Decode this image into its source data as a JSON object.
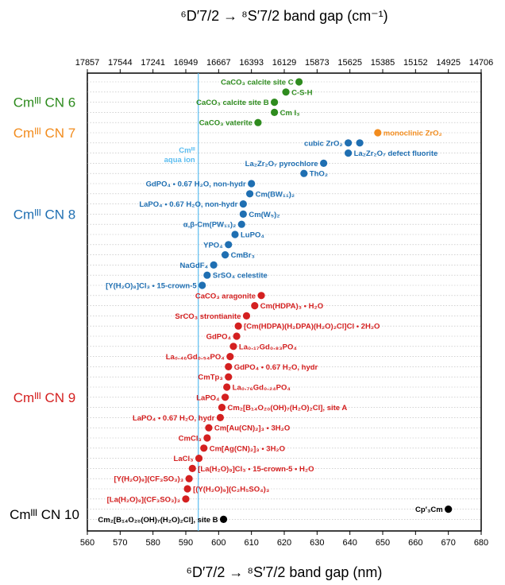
{
  "chart_data": {
    "type": "scatter",
    "xlabel": "⁶D′7/2 → ⁸S′7/2 band gap (nm)",
    "x2label": "⁶D′7/2 → ⁸S′7/2 band gap (cm⁻¹)",
    "xlim": [
      560,
      680
    ],
    "x_ticks": [
      "560",
      "570",
      "580",
      "590",
      "600",
      "610",
      "620",
      "630",
      "640",
      "650",
      "660",
      "670",
      "680"
    ],
    "x2_ticks": [
      "17857",
      "17544",
      "17241",
      "16949",
      "16667",
      "16393",
      "16129",
      "15873",
      "15625",
      "15385",
      "15152",
      "14925",
      "14706"
    ],
    "grid": "horizontal dotted",
    "colors": {
      "cn6": "#2e8b1e",
      "cn7": "#f28c1e",
      "cn8": "#1f6fb2",
      "cn9": "#d42020",
      "cn10": "#000000",
      "aqua": "#5bbdf0"
    },
    "reference_line": {
      "x": 593.8,
      "label": [
        "Cmᴵᴵᴵ",
        "aqua ion"
      ]
    },
    "groups": [
      {
        "key": "cn6",
        "label": "Cmᴵᴵᴵ CN 6"
      },
      {
        "key": "cn7",
        "label": "Cmᴵᴵᴵ CN 7"
      },
      {
        "key": "cn8",
        "label": "Cmᴵᴵᴵ CN 8"
      },
      {
        "key": "cn9",
        "label": "Cmᴵᴵᴵ CN 9"
      },
      {
        "key": "cn10",
        "label": "Cmᴵᴵᴵ CN 10"
      }
    ],
    "points": [
      {
        "g": "cn6",
        "row": 1,
        "x": 624.5,
        "label": "CaCO₃ calcite site C",
        "side": "left"
      },
      {
        "g": "cn6",
        "row": 2,
        "x": 620.5,
        "label": "C-S-H",
        "side": "right"
      },
      {
        "g": "cn6",
        "row": 3,
        "x": 617.0,
        "label": "CaCO₃ calcite site B",
        "side": "left"
      },
      {
        "g": "cn6",
        "row": 4,
        "x": 617.0,
        "label": "Cm I₃",
        "side": "top"
      },
      {
        "g": "cn6",
        "row": 5,
        "x": 612.0,
        "label": "CaCO₃ vaterite",
        "side": "left"
      },
      {
        "g": "cn7",
        "row": 6,
        "x": 648.5,
        "label": "monoclinic ZrO₂",
        "side": "right"
      },
      {
        "g": "cn8",
        "row": 7,
        "x": 639.5,
        "label": "cubic ZrO₂",
        "side": "left"
      },
      {
        "g": "cn8",
        "row": 7,
        "x": 643.0,
        "label": "",
        "side": "none"
      },
      {
        "g": "cn8",
        "row": 8,
        "x": 639.5,
        "label": "La₂Zr₂O₇ defect fluorite",
        "side": "right"
      },
      {
        "g": "cn8",
        "row": 9,
        "x": 632.0,
        "label": "La₂Zr₂O₇ pyrochlore",
        "side": "left"
      },
      {
        "g": "cn8",
        "row": 10,
        "x": 626.0,
        "label": "ThO₂",
        "side": "right"
      },
      {
        "g": "cn8",
        "row": 11,
        "x": 610.0,
        "label": "GdPO₄ • 0.67 H₂O, non-hydr",
        "side": "left"
      },
      {
        "g": "cn8",
        "row": 12,
        "x": 609.5,
        "label": "Cm(BW₁₁)₂",
        "side": "right"
      },
      {
        "g": "cn8",
        "row": 13,
        "x": 607.5,
        "label": "LaPO₄ • 0.67 H₂O, non-hydr",
        "side": "left"
      },
      {
        "g": "cn8",
        "row": 14,
        "x": 607.5,
        "label": "Cm(W₅)₂",
        "side": "right"
      },
      {
        "g": "cn8",
        "row": 15,
        "x": 607.0,
        "label": "α,β-Cm(PW₁₁)₂",
        "side": "left"
      },
      {
        "g": "cn8",
        "row": 16,
        "x": 605.0,
        "label": "LuPO₄",
        "side": "right"
      },
      {
        "g": "cn8",
        "row": 17,
        "x": 603.0,
        "label": "YPO₄",
        "side": "left"
      },
      {
        "g": "cn8",
        "row": 18,
        "x": 602.0,
        "label": "CmBr₃",
        "side": "right"
      },
      {
        "g": "cn8",
        "row": 19,
        "x": 598.5,
        "label": "NaGdF₄",
        "side": "left"
      },
      {
        "g": "cn8",
        "row": 20,
        "x": 596.5,
        "label": "SrSO₄ celestite",
        "side": "right"
      },
      {
        "g": "cn8",
        "row": 21,
        "x": 595.0,
        "label": "[Y(H₂O)₈]Cl₃ • 15-crown-5",
        "side": "left"
      },
      {
        "g": "cn9",
        "row": 22,
        "x": 613.0,
        "label": "CaCO₃ aragonite",
        "side": "left"
      },
      {
        "g": "cn9",
        "row": 23,
        "x": 611.0,
        "label": "Cm(HDPA)₃ • H₂O",
        "side": "right"
      },
      {
        "g": "cn9",
        "row": 24,
        "x": 608.5,
        "label": "SrCO₃ strontianite",
        "side": "left"
      },
      {
        "g": "cn9",
        "row": 25,
        "x": 606.0,
        "label": "[Cm(HDPA)(H₂DPA)(H₂O)₂Cl]Cl • 2H₂O",
        "side": "right"
      },
      {
        "g": "cn9",
        "row": 26,
        "x": 605.5,
        "label": "GdPO₄",
        "side": "left"
      },
      {
        "g": "cn9",
        "row": 27,
        "x": 604.5,
        "label": "La₀.₁₇Gd₀.₈₃PO₄",
        "side": "right"
      },
      {
        "g": "cn9",
        "row": 28,
        "x": 603.5,
        "label": "La₀.₄₆Gd₀.₅₄PO₄",
        "side": "left"
      },
      {
        "g": "cn9",
        "row": 29,
        "x": 603.0,
        "label": "GdPO₄ • 0.67 H₂O, hydr",
        "side": "right"
      },
      {
        "g": "cn9",
        "row": 30,
        "x": 603.0,
        "label": "CmTp₃",
        "side": "left"
      },
      {
        "g": "cn9",
        "row": 31,
        "x": 602.5,
        "label": "La₀.₇₆Gd₀.₂₄PO₄",
        "side": "right"
      },
      {
        "g": "cn9",
        "row": 32,
        "x": 602.0,
        "label": "LaPO₄",
        "side": "left"
      },
      {
        "g": "cn9",
        "row": 33,
        "x": 601.0,
        "label": "Cm₂[B₁₄O₂₀(OH)₇(H₂O)₂Cl], site A",
        "side": "right"
      },
      {
        "g": "cn9",
        "row": 34,
        "x": 600.5,
        "label": "LaPO₄ • 0.67 H₂O, hydr",
        "side": "left"
      },
      {
        "g": "cn9",
        "row": 35,
        "x": 597.0,
        "label": "Cm[Au(CN)₂]₃ • 3H₂O",
        "side": "right"
      },
      {
        "g": "cn9",
        "row": 36,
        "x": 596.5,
        "label": "CmCl₃",
        "side": "left"
      },
      {
        "g": "cn9",
        "row": 37,
        "x": 595.5,
        "label": "Cm[Ag(CN)₂]₃ • 3H₂O",
        "side": "right"
      },
      {
        "g": "cn9",
        "row": 38,
        "x": 594.0,
        "label": "LaCl₃",
        "side": "left"
      },
      {
        "g": "cn9",
        "row": 39,
        "x": 592.0,
        "label": "[La(H₂O)₉]Cl₃ • 15-crown-5 • H₂O",
        "side": "right"
      },
      {
        "g": "cn9",
        "row": 40,
        "x": 591.0,
        "label": "[Y(H₂O)₉](CF₃SO₃)₃",
        "side": "left"
      },
      {
        "g": "cn9",
        "row": 41,
        "x": 590.5,
        "label": "[(Y(H₂O)₉](C₂H₅SO₄)₃",
        "side": "right"
      },
      {
        "g": "cn9",
        "row": 42,
        "x": 590.0,
        "label": "[La(H₂O)₉](CF₃SO₃)₃",
        "side": "left"
      },
      {
        "g": "cn10",
        "row": 43,
        "x": 670.0,
        "label": "Cp′₃Cm",
        "side": "left"
      },
      {
        "g": "cn10",
        "row": 44,
        "x": 601.5,
        "label": "Cm₂[B₁₄O₂₀(OH)₇(H₂O)₂Cl], site B",
        "side": "left"
      }
    ]
  }
}
